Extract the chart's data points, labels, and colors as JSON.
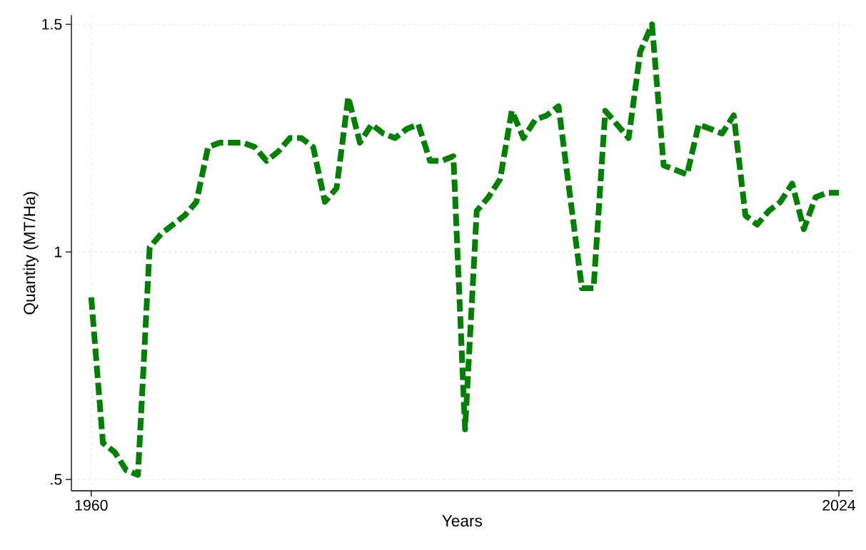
{
  "chart_data": {
    "type": "line",
    "xlabel": "Years",
    "ylabel": "Quantity (MT/Ha)",
    "x": [
      1960,
      1961,
      1962,
      1963,
      1964,
      1965,
      1966,
      1967,
      1968,
      1969,
      1970,
      1971,
      1972,
      1973,
      1974,
      1975,
      1976,
      1977,
      1978,
      1979,
      1980,
      1981,
      1982,
      1983,
      1984,
      1985,
      1986,
      1987,
      1988,
      1989,
      1990,
      1991,
      1992,
      1993,
      1994,
      1995,
      1996,
      1997,
      1998,
      1999,
      2000,
      2001,
      2002,
      2003,
      2004,
      2005,
      2006,
      2007,
      2008,
      2009,
      2010,
      2011,
      2012,
      2013,
      2014,
      2015,
      2016,
      2017,
      2018,
      2019,
      2020,
      2021,
      2022,
      2023,
      2024
    ],
    "series": [
      {
        "color": "#008000",
        "line_style": "dashed",
        "marker": "none",
        "values": [
          0.9,
          0.58,
          0.56,
          0.52,
          0.51,
          1.01,
          1.04,
          1.06,
          1.08,
          1.11,
          1.23,
          1.24,
          1.24,
          1.24,
          1.23,
          1.2,
          1.22,
          1.25,
          1.25,
          1.23,
          1.11,
          1.14,
          1.34,
          1.24,
          1.28,
          1.26,
          1.25,
          1.27,
          1.28,
          1.2,
          1.2,
          1.21,
          0.61,
          1.09,
          1.12,
          1.16,
          1.31,
          1.25,
          1.29,
          1.3,
          1.32,
          1.12,
          0.92,
          0.92,
          1.31,
          1.28,
          1.25,
          1.44,
          1.5,
          1.19,
          1.18,
          1.17,
          1.28,
          1.27,
          1.26,
          1.3,
          1.08,
          1.06,
          1.09,
          1.11,
          1.15,
          1.05,
          1.12,
          1.13,
          1.13
        ]
      }
    ],
    "xlim": [
      1958.3,
      2025.2
    ],
    "ylim": [
      0.475,
      1.52
    ],
    "xticks": [
      1960,
      2024
    ],
    "yticks": [
      {
        "value": 0.5,
        "label": ".5"
      },
      1,
      {
        "value": 1.5,
        "label": "1.5"
      }
    ],
    "grid": true
  }
}
